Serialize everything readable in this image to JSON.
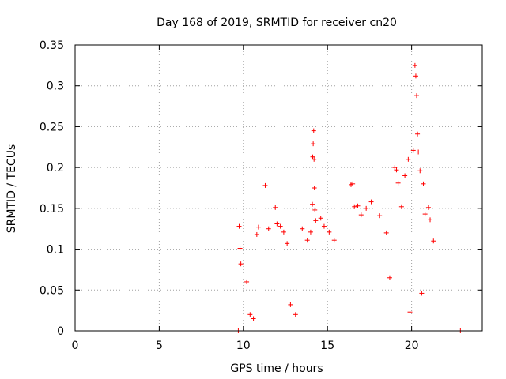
{
  "chart_data": {
    "type": "scatter",
    "title": "Day 168 of 2019, SRMTID for receiver cn20",
    "xlabel": "GPS time / hours",
    "ylabel": "SRMTID / TECUs",
    "xlim": [
      0,
      24.2
    ],
    "ylim": [
      0,
      0.35
    ],
    "grid": true,
    "marker": "+",
    "color": "#ff0000",
    "xticks": [
      0,
      5,
      10,
      15,
      20
    ],
    "xtick_labels": [
      "0",
      "5",
      "10",
      "15",
      "20"
    ],
    "yticks": [
      0,
      0.05,
      0.1,
      0.15,
      0.2,
      0.25,
      0.3,
      0.35
    ],
    "ytick_labels": [
      "0",
      "0.05",
      "0.1",
      "0.15",
      "0.2",
      "0.25",
      "0.3",
      "0.35"
    ],
    "series": [
      {
        "name": "cn20",
        "points": [
          [
            9.7,
            0.0
          ],
          [
            22.9,
            0.0
          ],
          [
            9.75,
            0.128
          ],
          [
            9.8,
            0.101
          ],
          [
            9.85,
            0.082
          ],
          [
            10.2,
            0.06
          ],
          [
            10.4,
            0.02
          ],
          [
            10.6,
            0.015
          ],
          [
            10.8,
            0.118
          ],
          [
            10.9,
            0.127
          ],
          [
            11.3,
            0.178
          ],
          [
            11.5,
            0.125
          ],
          [
            11.9,
            0.151
          ],
          [
            12.0,
            0.131
          ],
          [
            12.2,
            0.128
          ],
          [
            12.4,
            0.121
          ],
          [
            12.6,
            0.107
          ],
          [
            12.8,
            0.032
          ],
          [
            13.1,
            0.02
          ],
          [
            13.5,
            0.125
          ],
          [
            13.8,
            0.111
          ],
          [
            14.0,
            0.121
          ],
          [
            14.1,
            0.155
          ],
          [
            14.12,
            0.213
          ],
          [
            14.15,
            0.229
          ],
          [
            14.18,
            0.245
          ],
          [
            14.2,
            0.21
          ],
          [
            14.22,
            0.175
          ],
          [
            14.25,
            0.148
          ],
          [
            14.3,
            0.135
          ],
          [
            14.6,
            0.138
          ],
          [
            14.8,
            0.128
          ],
          [
            15.1,
            0.121
          ],
          [
            15.4,
            0.111
          ],
          [
            16.4,
            0.179
          ],
          [
            16.5,
            0.18
          ],
          [
            16.6,
            0.152
          ],
          [
            16.8,
            0.153
          ],
          [
            17.0,
            0.142
          ],
          [
            17.3,
            0.15
          ],
          [
            17.6,
            0.158
          ],
          [
            18.1,
            0.141
          ],
          [
            18.5,
            0.12
          ],
          [
            18.7,
            0.065
          ],
          [
            19.0,
            0.2
          ],
          [
            19.1,
            0.197
          ],
          [
            19.2,
            0.181
          ],
          [
            19.4,
            0.152
          ],
          [
            19.6,
            0.19
          ],
          [
            19.8,
            0.21
          ],
          [
            19.9,
            0.023
          ],
          [
            20.1,
            0.221
          ],
          [
            20.2,
            0.325
          ],
          [
            20.25,
            0.312
          ],
          [
            20.3,
            0.288
          ],
          [
            20.35,
            0.241
          ],
          [
            20.4,
            0.219
          ],
          [
            20.5,
            0.196
          ],
          [
            20.6,
            0.046
          ],
          [
            20.7,
            0.18
          ],
          [
            20.8,
            0.143
          ],
          [
            21.0,
            0.151
          ],
          [
            21.1,
            0.136
          ],
          [
            21.3,
            0.11
          ]
        ]
      }
    ]
  }
}
